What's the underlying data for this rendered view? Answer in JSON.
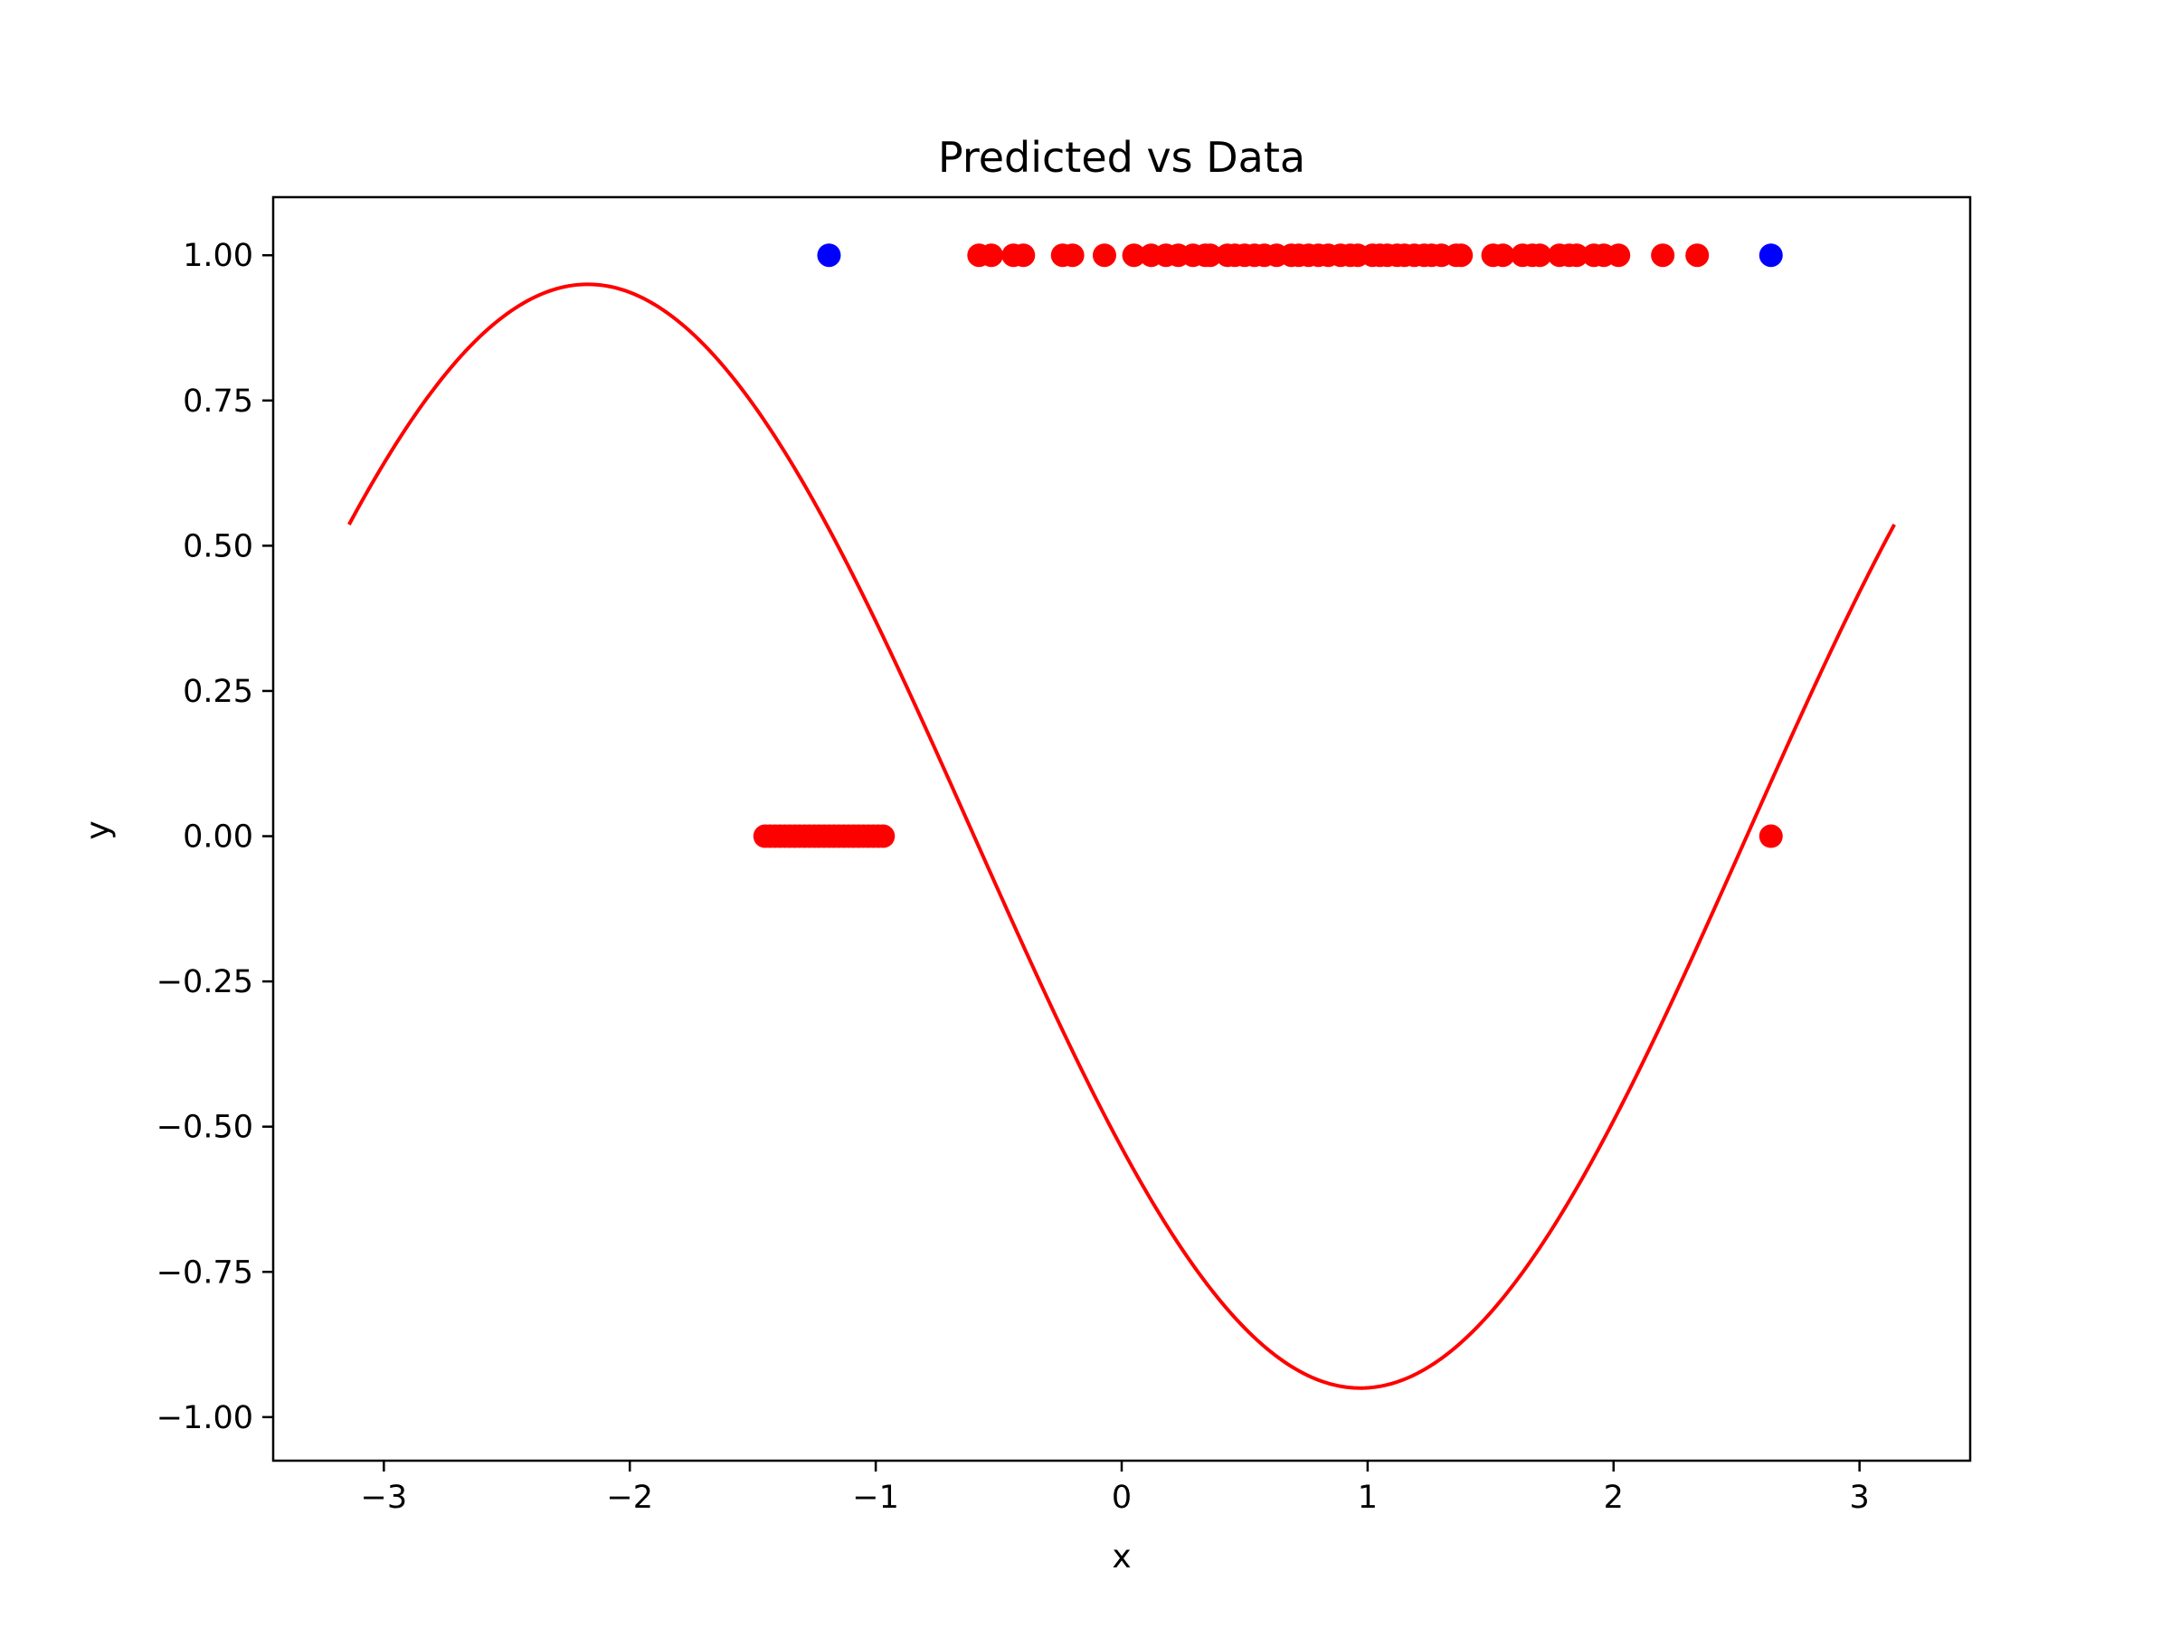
{
  "chart_data": {
    "type": "scatter",
    "title": "Predicted vs Data",
    "xlabel": "x",
    "ylabel": "y",
    "xlim": [
      -3.45,
      3.45
    ],
    "ylim": [
      -1.075,
      1.1
    ],
    "grid": false,
    "xticks": [
      {
        "value": -3,
        "label": "−3"
      },
      {
        "value": -2,
        "label": "−2"
      },
      {
        "value": -1,
        "label": "−1"
      },
      {
        "value": 0,
        "label": "0"
      },
      {
        "value": 1,
        "label": "1"
      },
      {
        "value": 2,
        "label": "2"
      },
      {
        "value": 3,
        "label": "3"
      }
    ],
    "yticks": [
      {
        "value": 1.0,
        "label": "1.00"
      },
      {
        "value": 0.75,
        "label": "0.75"
      },
      {
        "value": 0.5,
        "label": "0.50"
      },
      {
        "value": 0.25,
        "label": "0.25"
      },
      {
        "value": 0.0,
        "label": "0.00"
      },
      {
        "value": -0.25,
        "label": "−0.25"
      },
      {
        "value": -0.5,
        "label": "−0.50"
      },
      {
        "value": -0.75,
        "label": "−0.75"
      },
      {
        "value": -1.0,
        "label": "−1.00"
      }
    ],
    "series": [
      {
        "kind": "line",
        "color": "#ff0000",
        "function": "-0.95 * sin(x + 0.6)",
        "x_range": [
          -3.14159,
          3.14159
        ]
      },
      {
        "kind": "scatter",
        "color": "#ff0000",
        "points": [
          [
            -1.45,
            0
          ],
          [
            -1.43,
            0
          ],
          [
            -1.41,
            0
          ],
          [
            -1.39,
            0
          ],
          [
            -1.37,
            0
          ],
          [
            -1.35,
            0
          ],
          [
            -1.33,
            0
          ],
          [
            -1.31,
            0
          ],
          [
            -1.29,
            0
          ],
          [
            -1.27,
            0
          ],
          [
            -1.25,
            0
          ],
          [
            -1.23,
            0
          ],
          [
            -1.21,
            0
          ],
          [
            -1.19,
            0
          ],
          [
            -1.17,
            0
          ],
          [
            -1.15,
            0
          ],
          [
            -1.13,
            0
          ],
          [
            -1.11,
            0
          ],
          [
            -1.09,
            0
          ],
          [
            -1.07,
            0
          ],
          [
            -1.05,
            0
          ],
          [
            -1.03,
            0
          ],
          [
            -1.01,
            0
          ],
          [
            -0.99,
            0
          ],
          [
            -0.97,
            0
          ],
          [
            2.64,
            0
          ],
          [
            -0.58,
            1
          ],
          [
            -0.53,
            1
          ],
          [
            -0.44,
            1
          ],
          [
            -0.4,
            1
          ],
          [
            -0.24,
            1
          ],
          [
            -0.2,
            1
          ],
          [
            -0.07,
            1
          ],
          [
            0.05,
            1
          ],
          [
            0.12,
            1
          ],
          [
            0.18,
            1
          ],
          [
            0.23,
            1
          ],
          [
            0.29,
            1
          ],
          [
            0.34,
            1
          ],
          [
            0.36,
            1
          ],
          [
            0.43,
            1
          ],
          [
            0.46,
            1
          ],
          [
            0.5,
            1
          ],
          [
            0.54,
            1
          ],
          [
            0.58,
            1
          ],
          [
            0.63,
            1
          ],
          [
            0.69,
            1
          ],
          [
            0.72,
            1
          ],
          [
            0.76,
            1
          ],
          [
            0.8,
            1
          ],
          [
            0.84,
            1
          ],
          [
            0.89,
            1
          ],
          [
            0.93,
            1
          ],
          [
            0.96,
            1
          ],
          [
            1.02,
            1
          ],
          [
            1.05,
            1
          ],
          [
            1.08,
            1
          ],
          [
            1.12,
            1
          ],
          [
            1.15,
            1
          ],
          [
            1.19,
            1
          ],
          [
            1.23,
            1
          ],
          [
            1.26,
            1
          ],
          [
            1.3,
            1
          ],
          [
            1.36,
            1
          ],
          [
            1.38,
            1
          ],
          [
            1.51,
            1
          ],
          [
            1.55,
            1
          ],
          [
            1.63,
            1
          ],
          [
            1.67,
            1
          ],
          [
            1.7,
            1
          ],
          [
            1.78,
            1
          ],
          [
            1.82,
            1
          ],
          [
            1.85,
            1
          ],
          [
            1.92,
            1
          ],
          [
            1.96,
            1
          ],
          [
            2.02,
            1
          ],
          [
            2.2,
            1
          ],
          [
            2.34,
            1
          ]
        ]
      },
      {
        "kind": "scatter",
        "color": "#0000ff",
        "points": [
          [
            -1.19,
            1
          ],
          [
            2.64,
            1
          ]
        ]
      }
    ]
  }
}
